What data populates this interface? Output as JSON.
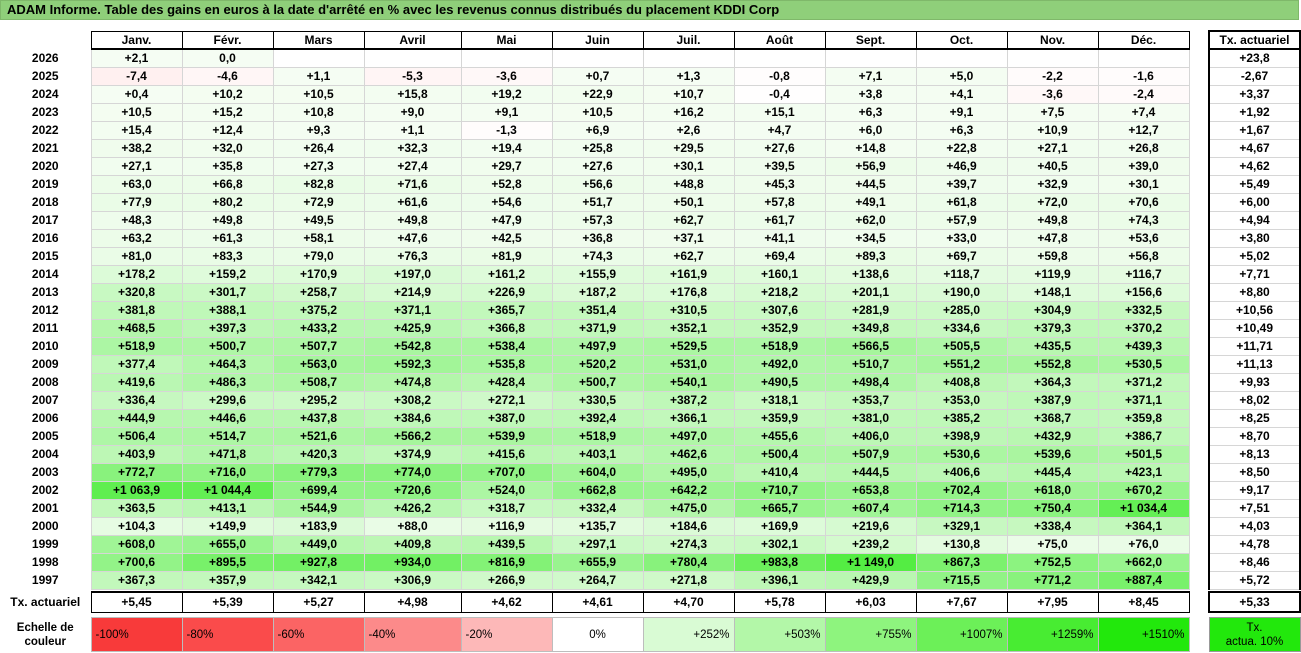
{
  "title": "ADAM Informe. Table des gains en euros à la date d'arrêté en % avec les revenus connus distribués du placement KDDI Corp",
  "months": [
    "Janv.",
    "Févr.",
    "Mars",
    "Avril",
    "Mai",
    "Juin",
    "Juil.",
    "Août",
    "Sept.",
    "Oct.",
    "Nov.",
    "Déc."
  ],
  "tx_header": "Tx. actuariel",
  "rows": [
    {
      "year": "2026",
      "values": [
        "+2,1",
        "0,0",
        "",
        "",
        "",
        "",
        "",
        "",
        "",
        "",
        "",
        ""
      ],
      "tx": "+23,8"
    },
    {
      "year": "2025",
      "values": [
        "-7,4",
        "-4,6",
        "+1,1",
        "-5,3",
        "-3,6",
        "+0,7",
        "+1,3",
        "-0,8",
        "+7,1",
        "+5,0",
        "-2,2",
        "-1,6"
      ],
      "tx": "-2,67"
    },
    {
      "year": "2024",
      "values": [
        "+0,4",
        "+10,2",
        "+10,5",
        "+15,8",
        "+19,2",
        "+22,9",
        "+10,7",
        "-0,4",
        "+3,8",
        "+4,1",
        "-3,6",
        "-2,4"
      ],
      "tx": "+3,37"
    },
    {
      "year": "2023",
      "values": [
        "+10,5",
        "+15,2",
        "+10,8",
        "+9,0",
        "+9,1",
        "+10,5",
        "+16,2",
        "+15,1",
        "+6,3",
        "+9,1",
        "+7,5",
        "+7,4"
      ],
      "tx": "+1,92"
    },
    {
      "year": "2022",
      "values": [
        "+15,4",
        "+12,4",
        "+9,3",
        "+1,1",
        "-1,3",
        "+6,9",
        "+2,6",
        "+4,7",
        "+6,0",
        "+6,3",
        "+10,9",
        "+12,7"
      ],
      "tx": "+1,67"
    },
    {
      "year": "2021",
      "values": [
        "+38,2",
        "+32,0",
        "+26,4",
        "+32,3",
        "+19,4",
        "+25,8",
        "+29,5",
        "+27,6",
        "+14,8",
        "+22,8",
        "+27,1",
        "+26,8"
      ],
      "tx": "+4,67"
    },
    {
      "year": "2020",
      "values": [
        "+27,1",
        "+35,8",
        "+27,3",
        "+27,4",
        "+29,7",
        "+27,6",
        "+30,1",
        "+39,5",
        "+56,9",
        "+46,9",
        "+40,5",
        "+39,0"
      ],
      "tx": "+4,62"
    },
    {
      "year": "2019",
      "values": [
        "+63,0",
        "+66,8",
        "+82,8",
        "+71,6",
        "+52,8",
        "+56,6",
        "+48,8",
        "+45,3",
        "+44,5",
        "+39,7",
        "+32,9",
        "+30,1"
      ],
      "tx": "+5,49"
    },
    {
      "year": "2018",
      "values": [
        "+77,9",
        "+80,2",
        "+72,9",
        "+61,6",
        "+54,6",
        "+51,7",
        "+50,1",
        "+57,8",
        "+49,1",
        "+61,8",
        "+72,0",
        "+70,6"
      ],
      "tx": "+6,00"
    },
    {
      "year": "2017",
      "values": [
        "+48,3",
        "+49,8",
        "+49,5",
        "+49,8",
        "+47,9",
        "+57,3",
        "+62,7",
        "+61,7",
        "+62,0",
        "+57,9",
        "+49,8",
        "+74,3"
      ],
      "tx": "+4,94"
    },
    {
      "year": "2016",
      "values": [
        "+63,2",
        "+61,3",
        "+58,1",
        "+47,6",
        "+42,5",
        "+36,8",
        "+37,1",
        "+41,1",
        "+34,5",
        "+33,0",
        "+47,8",
        "+53,6"
      ],
      "tx": "+3,80"
    },
    {
      "year": "2015",
      "values": [
        "+81,0",
        "+83,3",
        "+79,0",
        "+76,3",
        "+81,9",
        "+74,3",
        "+62,7",
        "+69,4",
        "+89,3",
        "+69,7",
        "+59,8",
        "+56,8"
      ],
      "tx": "+5,02"
    },
    {
      "year": "2014",
      "values": [
        "+178,2",
        "+159,2",
        "+170,9",
        "+197,0",
        "+161,2",
        "+155,9",
        "+161,9",
        "+160,1",
        "+138,6",
        "+118,7",
        "+119,9",
        "+116,7"
      ],
      "tx": "+7,71"
    },
    {
      "year": "2013",
      "values": [
        "+320,8",
        "+301,7",
        "+258,7",
        "+214,9",
        "+226,9",
        "+187,2",
        "+176,8",
        "+218,2",
        "+201,1",
        "+190,0",
        "+148,1",
        "+156,6"
      ],
      "tx": "+8,80"
    },
    {
      "year": "2012",
      "values": [
        "+381,8",
        "+388,1",
        "+375,2",
        "+371,1",
        "+365,7",
        "+351,4",
        "+310,5",
        "+307,6",
        "+281,9",
        "+285,0",
        "+304,9",
        "+332,5"
      ],
      "tx": "+10,56"
    },
    {
      "year": "2011",
      "values": [
        "+468,5",
        "+397,3",
        "+433,2",
        "+425,9",
        "+366,8",
        "+371,9",
        "+352,1",
        "+352,9",
        "+349,8",
        "+334,6",
        "+379,3",
        "+370,2"
      ],
      "tx": "+10,49"
    },
    {
      "year": "2010",
      "values": [
        "+518,9",
        "+500,7",
        "+507,7",
        "+542,8",
        "+538,4",
        "+497,9",
        "+529,5",
        "+518,9",
        "+566,5",
        "+505,5",
        "+435,5",
        "+439,3"
      ],
      "tx": "+11,71"
    },
    {
      "year": "2009",
      "values": [
        "+377,4",
        "+464,3",
        "+563,0",
        "+592,3",
        "+535,8",
        "+520,2",
        "+531,0",
        "+492,0",
        "+510,7",
        "+551,2",
        "+552,8",
        "+530,5"
      ],
      "tx": "+11,13"
    },
    {
      "year": "2008",
      "values": [
        "+419,6",
        "+486,3",
        "+508,7",
        "+474,8",
        "+428,4",
        "+500,7",
        "+540,1",
        "+490,5",
        "+498,4",
        "+408,8",
        "+364,3",
        "+371,2"
      ],
      "tx": "+9,93"
    },
    {
      "year": "2007",
      "values": [
        "+336,4",
        "+299,6",
        "+295,2",
        "+308,2",
        "+272,1",
        "+330,5",
        "+387,2",
        "+318,1",
        "+353,7",
        "+353,0",
        "+387,9",
        "+371,1"
      ],
      "tx": "+8,02"
    },
    {
      "year": "2006",
      "values": [
        "+444,9",
        "+446,6",
        "+437,8",
        "+384,6",
        "+387,0",
        "+392,4",
        "+366,1",
        "+359,9",
        "+381,0",
        "+385,2",
        "+368,7",
        "+359,8"
      ],
      "tx": "+8,25"
    },
    {
      "year": "2005",
      "values": [
        "+506,4",
        "+514,7",
        "+521,6",
        "+566,2",
        "+539,9",
        "+518,9",
        "+497,0",
        "+455,6",
        "+406,0",
        "+398,9",
        "+432,9",
        "+386,7"
      ],
      "tx": "+8,70"
    },
    {
      "year": "2004",
      "values": [
        "+403,9",
        "+471,8",
        "+420,3",
        "+374,9",
        "+415,6",
        "+403,1",
        "+462,6",
        "+500,4",
        "+507,9",
        "+530,6",
        "+539,6",
        "+501,5"
      ],
      "tx": "+8,13"
    },
    {
      "year": "2003",
      "values": [
        "+772,7",
        "+716,0",
        "+779,3",
        "+774,0",
        "+707,0",
        "+604,0",
        "+495,0",
        "+410,4",
        "+444,5",
        "+406,6",
        "+445,4",
        "+423,1"
      ],
      "tx": "+8,50"
    },
    {
      "year": "2002",
      "values": [
        "+1 063,9",
        "+1 044,4",
        "+699,4",
        "+720,6",
        "+524,0",
        "+662,8",
        "+642,2",
        "+710,7",
        "+653,8",
        "+702,4",
        "+618,0",
        "+670,2"
      ],
      "tx": "+9,17"
    },
    {
      "year": "2001",
      "values": [
        "+363,5",
        "+413,1",
        "+544,9",
        "+426,2",
        "+318,7",
        "+332,4",
        "+475,0",
        "+665,7",
        "+607,4",
        "+714,3",
        "+750,4",
        "+1 034,4"
      ],
      "tx": "+7,51"
    },
    {
      "year": "2000",
      "values": [
        "+104,3",
        "+149,9",
        "+183,9",
        "+88,0",
        "+116,9",
        "+135,7",
        "+184,6",
        "+169,9",
        "+219,6",
        "+329,1",
        "+338,4",
        "+364,1"
      ],
      "tx": "+4,03"
    },
    {
      "year": "1999",
      "values": [
        "+608,0",
        "+655,0",
        "+449,0",
        "+409,8",
        "+439,5",
        "+297,1",
        "+274,3",
        "+302,1",
        "+239,2",
        "+130,8",
        "+75,0",
        "+76,0"
      ],
      "tx": "+4,78"
    },
    {
      "year": "1998",
      "values": [
        "+700,6",
        "+895,5",
        "+927,8",
        "+934,0",
        "+816,9",
        "+655,9",
        "+780,4",
        "+983,8",
        "+1 149,0",
        "+867,3",
        "+752,5",
        "+662,0"
      ],
      "tx": "+8,46"
    },
    {
      "year": "1997",
      "values": [
        "+367,3",
        "+357,9",
        "+342,1",
        "+306,9",
        "+266,9",
        "+264,7",
        "+271,8",
        "+396,1",
        "+429,9",
        "+715,5",
        "+771,2",
        "+887,4"
      ],
      "tx": "+5,72"
    }
  ],
  "footer": {
    "label": "Tx. actuariel",
    "values": [
      "+5,45",
      "+5,39",
      "+5,27",
      "+4,98",
      "+4,62",
      "+4,61",
      "+4,70",
      "+5,78",
      "+6,03",
      "+7,67",
      "+7,95",
      "+8,45"
    ],
    "tx": "+5,33"
  },
  "legend": {
    "label_line1": "Echelle de",
    "label_line2": "couleur",
    "items": [
      {
        "label": "-100%",
        "color": "#f83a3a",
        "kind": "neg"
      },
      {
        "label": "-80%",
        "color": "#fa4b4b",
        "kind": "neg"
      },
      {
        "label": "-60%",
        "color": "#fb6464",
        "kind": "neg"
      },
      {
        "label": "-40%",
        "color": "#fc8a8a",
        "kind": "neg"
      },
      {
        "label": "-20%",
        "color": "#fdb8b8",
        "kind": "neg"
      },
      {
        "label": "0%",
        "color": "#ffffff",
        "kind": "zero"
      },
      {
        "label": "+252%",
        "color": "#d9fbd4",
        "kind": "pos"
      },
      {
        "label": "+503%",
        "color": "#b3f7a8",
        "kind": "pos"
      },
      {
        "label": "+755%",
        "color": "#8ef47e",
        "kind": "pos"
      },
      {
        "label": "+1007%",
        "color": "#6cf058",
        "kind": "pos"
      },
      {
        "label": "+1259%",
        "color": "#48ec32",
        "kind": "pos"
      },
      {
        "label": "+1510%",
        "color": "#22e80c",
        "kind": "pos"
      }
    ],
    "tx_line1": "Tx.",
    "tx_line2": "actua. 10%",
    "tx_color": "#22e80c"
  }
}
